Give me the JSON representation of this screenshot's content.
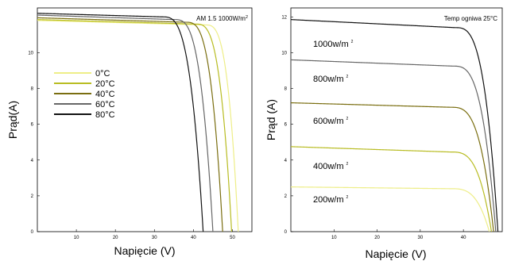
{
  "chart_data": [
    {
      "type": "line",
      "annotation": "AM 1.5 1000W/m",
      "annotation_sup": "2",
      "xlabel": "Napięcie (V)",
      "ylabel": "Prąd(A)",
      "xlim": [
        0,
        55
      ],
      "ylim": [
        0,
        12.5
      ],
      "xticks": [
        10,
        20,
        30,
        40,
        50
      ],
      "yticks": [
        0,
        2,
        4,
        6,
        8,
        10
      ],
      "grid": false,
      "legend_position": "center-left",
      "series": [
        {
          "name": "0°C",
          "color": "#eeee88",
          "isc": 11.8,
          "voc": 51.5,
          "knee": 43.0,
          "droop": 0.25
        },
        {
          "name": "20°C",
          "color": "#b8bc22",
          "isc": 11.85,
          "voc": 49.8,
          "knee": 40.5,
          "droop": 0.25
        },
        {
          "name": "40°C",
          "color": "#7a6e10",
          "isc": 11.95,
          "voc": 47.5,
          "knee": 38.0,
          "droop": 0.25
        },
        {
          "name": "60°C",
          "color": "#666666",
          "isc": 12.1,
          "voc": 45.0,
          "knee": 35.0,
          "droop": 0.25
        },
        {
          "name": "80°C",
          "color": "#111111",
          "isc": 12.2,
          "voc": 42.5,
          "knee": 32.0,
          "droop": 0.2
        }
      ]
    },
    {
      "type": "line",
      "annotation": "Temp ogniwa 25°C",
      "xlabel": "Napięcie (V)",
      "ylabel": "Prąd (A)",
      "xlim": [
        0,
        49
      ],
      "ylim": [
        0,
        12.5
      ],
      "xticks": [
        10,
        20,
        30,
        40
      ],
      "yticks": [
        0,
        2,
        4,
        6,
        8,
        10,
        12
      ],
      "grid": false,
      "series": [
        {
          "name": "1000w/m",
          "sup": "2",
          "color": "#111111",
          "isc": 11.85,
          "voc": 48.0,
          "knee": 38.0,
          "droop": 0.45
        },
        {
          "name": "800w/m",
          "sup": "2",
          "color": "#666666",
          "isc": 9.6,
          "voc": 47.5,
          "knee": 37.5,
          "droop": 0.35
        },
        {
          "name": "600w/m",
          "sup": "2",
          "color": "#7a6e10",
          "isc": 7.2,
          "voc": 47.0,
          "knee": 37.0,
          "droop": 0.25
        },
        {
          "name": "400w/m",
          "sup": "2",
          "color": "#b8bc22",
          "isc": 4.75,
          "voc": 46.5,
          "knee": 37.0,
          "droop": 0.3
        },
        {
          "name": "200w/m",
          "sup": "2",
          "color": "#eeee88",
          "isc": 2.5,
          "voc": 46.0,
          "knee": 37.0,
          "droop": 0.1
        }
      ]
    }
  ]
}
